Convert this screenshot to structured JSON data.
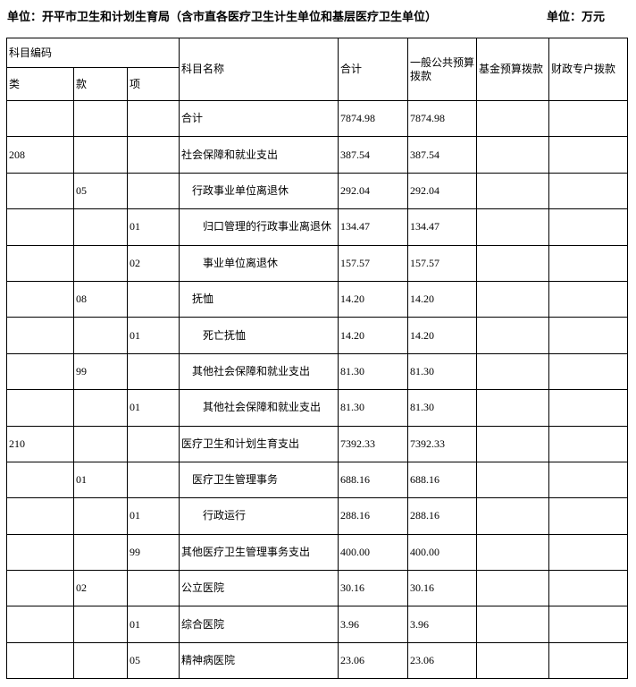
{
  "page": {
    "unit_label": "单位：开平市卫生和计划生育局（含市直各医疗卫生计生单位和基层医疗卫生单位）",
    "currency_label": "单位：万元"
  },
  "table": {
    "header": {
      "code_group": "科目编码",
      "lei": "类",
      "kuan": "款",
      "xiang": "项",
      "subject_name": "科目名称",
      "total": "合计",
      "general_public_budget": "一般公共预算拨款",
      "fund_budget": "基金预算拨款",
      "fiscal_special_account": "财政专户拨款"
    },
    "rows": [
      {
        "lei": "",
        "kuan": "",
        "xiang": "",
        "name": "合计",
        "indent": 0,
        "total": "7874.98",
        "general": "7874.98",
        "fund": "",
        "special": ""
      },
      {
        "lei": "208",
        "kuan": "",
        "xiang": "",
        "name": "社会保障和就业支出",
        "indent": 0,
        "total": "387.54",
        "general": "387.54",
        "fund": "",
        "special": ""
      },
      {
        "lei": "",
        "kuan": "05",
        "xiang": "",
        "name": "行政事业单位离退休",
        "indent": 1,
        "total": "292.04",
        "general": "292.04",
        "fund": "",
        "special": ""
      },
      {
        "lei": "",
        "kuan": "",
        "xiang": "01",
        "name": "归口管理的行政事业离退休",
        "indent": 2,
        "total": "134.47",
        "general": "134.47",
        "fund": "",
        "special": ""
      },
      {
        "lei": "",
        "kuan": "",
        "xiang": "02",
        "name": "事业单位离退休",
        "indent": 2,
        "total": "157.57",
        "general": "157.57",
        "fund": "",
        "special": ""
      },
      {
        "lei": "",
        "kuan": "08",
        "xiang": "",
        "name": "抚恤",
        "indent": 1,
        "total": "14.20",
        "general": "14.20",
        "fund": "",
        "special": ""
      },
      {
        "lei": "",
        "kuan": "",
        "xiang": "01",
        "name": "死亡抚恤",
        "indent": 2,
        "total": "14.20",
        "general": "14.20",
        "fund": "",
        "special": ""
      },
      {
        "lei": "",
        "kuan": "99",
        "xiang": "",
        "name": "其他社会保障和就业支出",
        "indent": 1,
        "total": "81.30",
        "general": "81.30",
        "fund": "",
        "special": ""
      },
      {
        "lei": "",
        "kuan": "",
        "xiang": "01",
        "name": "其他社会保障和就业支出",
        "indent": 2,
        "total": "81.30",
        "general": "81.30",
        "fund": "",
        "special": ""
      },
      {
        "lei": "210",
        "kuan": "",
        "xiang": "",
        "name": "医疗卫生和计划生育支出",
        "indent": 0,
        "total": "7392.33",
        "general": "7392.33",
        "fund": "",
        "special": ""
      },
      {
        "lei": "",
        "kuan": "01",
        "xiang": "",
        "name": "医疗卫生管理事务",
        "indent": 1,
        "total": "688.16",
        "general": "688.16",
        "fund": "",
        "special": ""
      },
      {
        "lei": "",
        "kuan": "",
        "xiang": "01",
        "name": "行政运行",
        "indent": 2,
        "total": "288.16",
        "general": "288.16",
        "fund": "",
        "special": ""
      },
      {
        "lei": "",
        "kuan": "",
        "xiang": "99",
        "name": "其他医疗卫生管理事务支出",
        "indent": 0,
        "total": "400.00",
        "general": "400.00",
        "fund": "",
        "special": ""
      },
      {
        "lei": "",
        "kuan": "02",
        "xiang": "",
        "name": "公立医院",
        "indent": 0,
        "total": "30.16",
        "general": "30.16",
        "fund": "",
        "special": ""
      },
      {
        "lei": "",
        "kuan": "",
        "xiang": "01",
        "name": "综合医院",
        "indent": 0,
        "total": "3.96",
        "general": "3.96",
        "fund": "",
        "special": ""
      },
      {
        "lei": "",
        "kuan": "",
        "xiang": "05",
        "name": "精神病医院",
        "indent": 0,
        "total": "23.06",
        "general": "23.06",
        "fund": "",
        "special": ""
      }
    ]
  }
}
